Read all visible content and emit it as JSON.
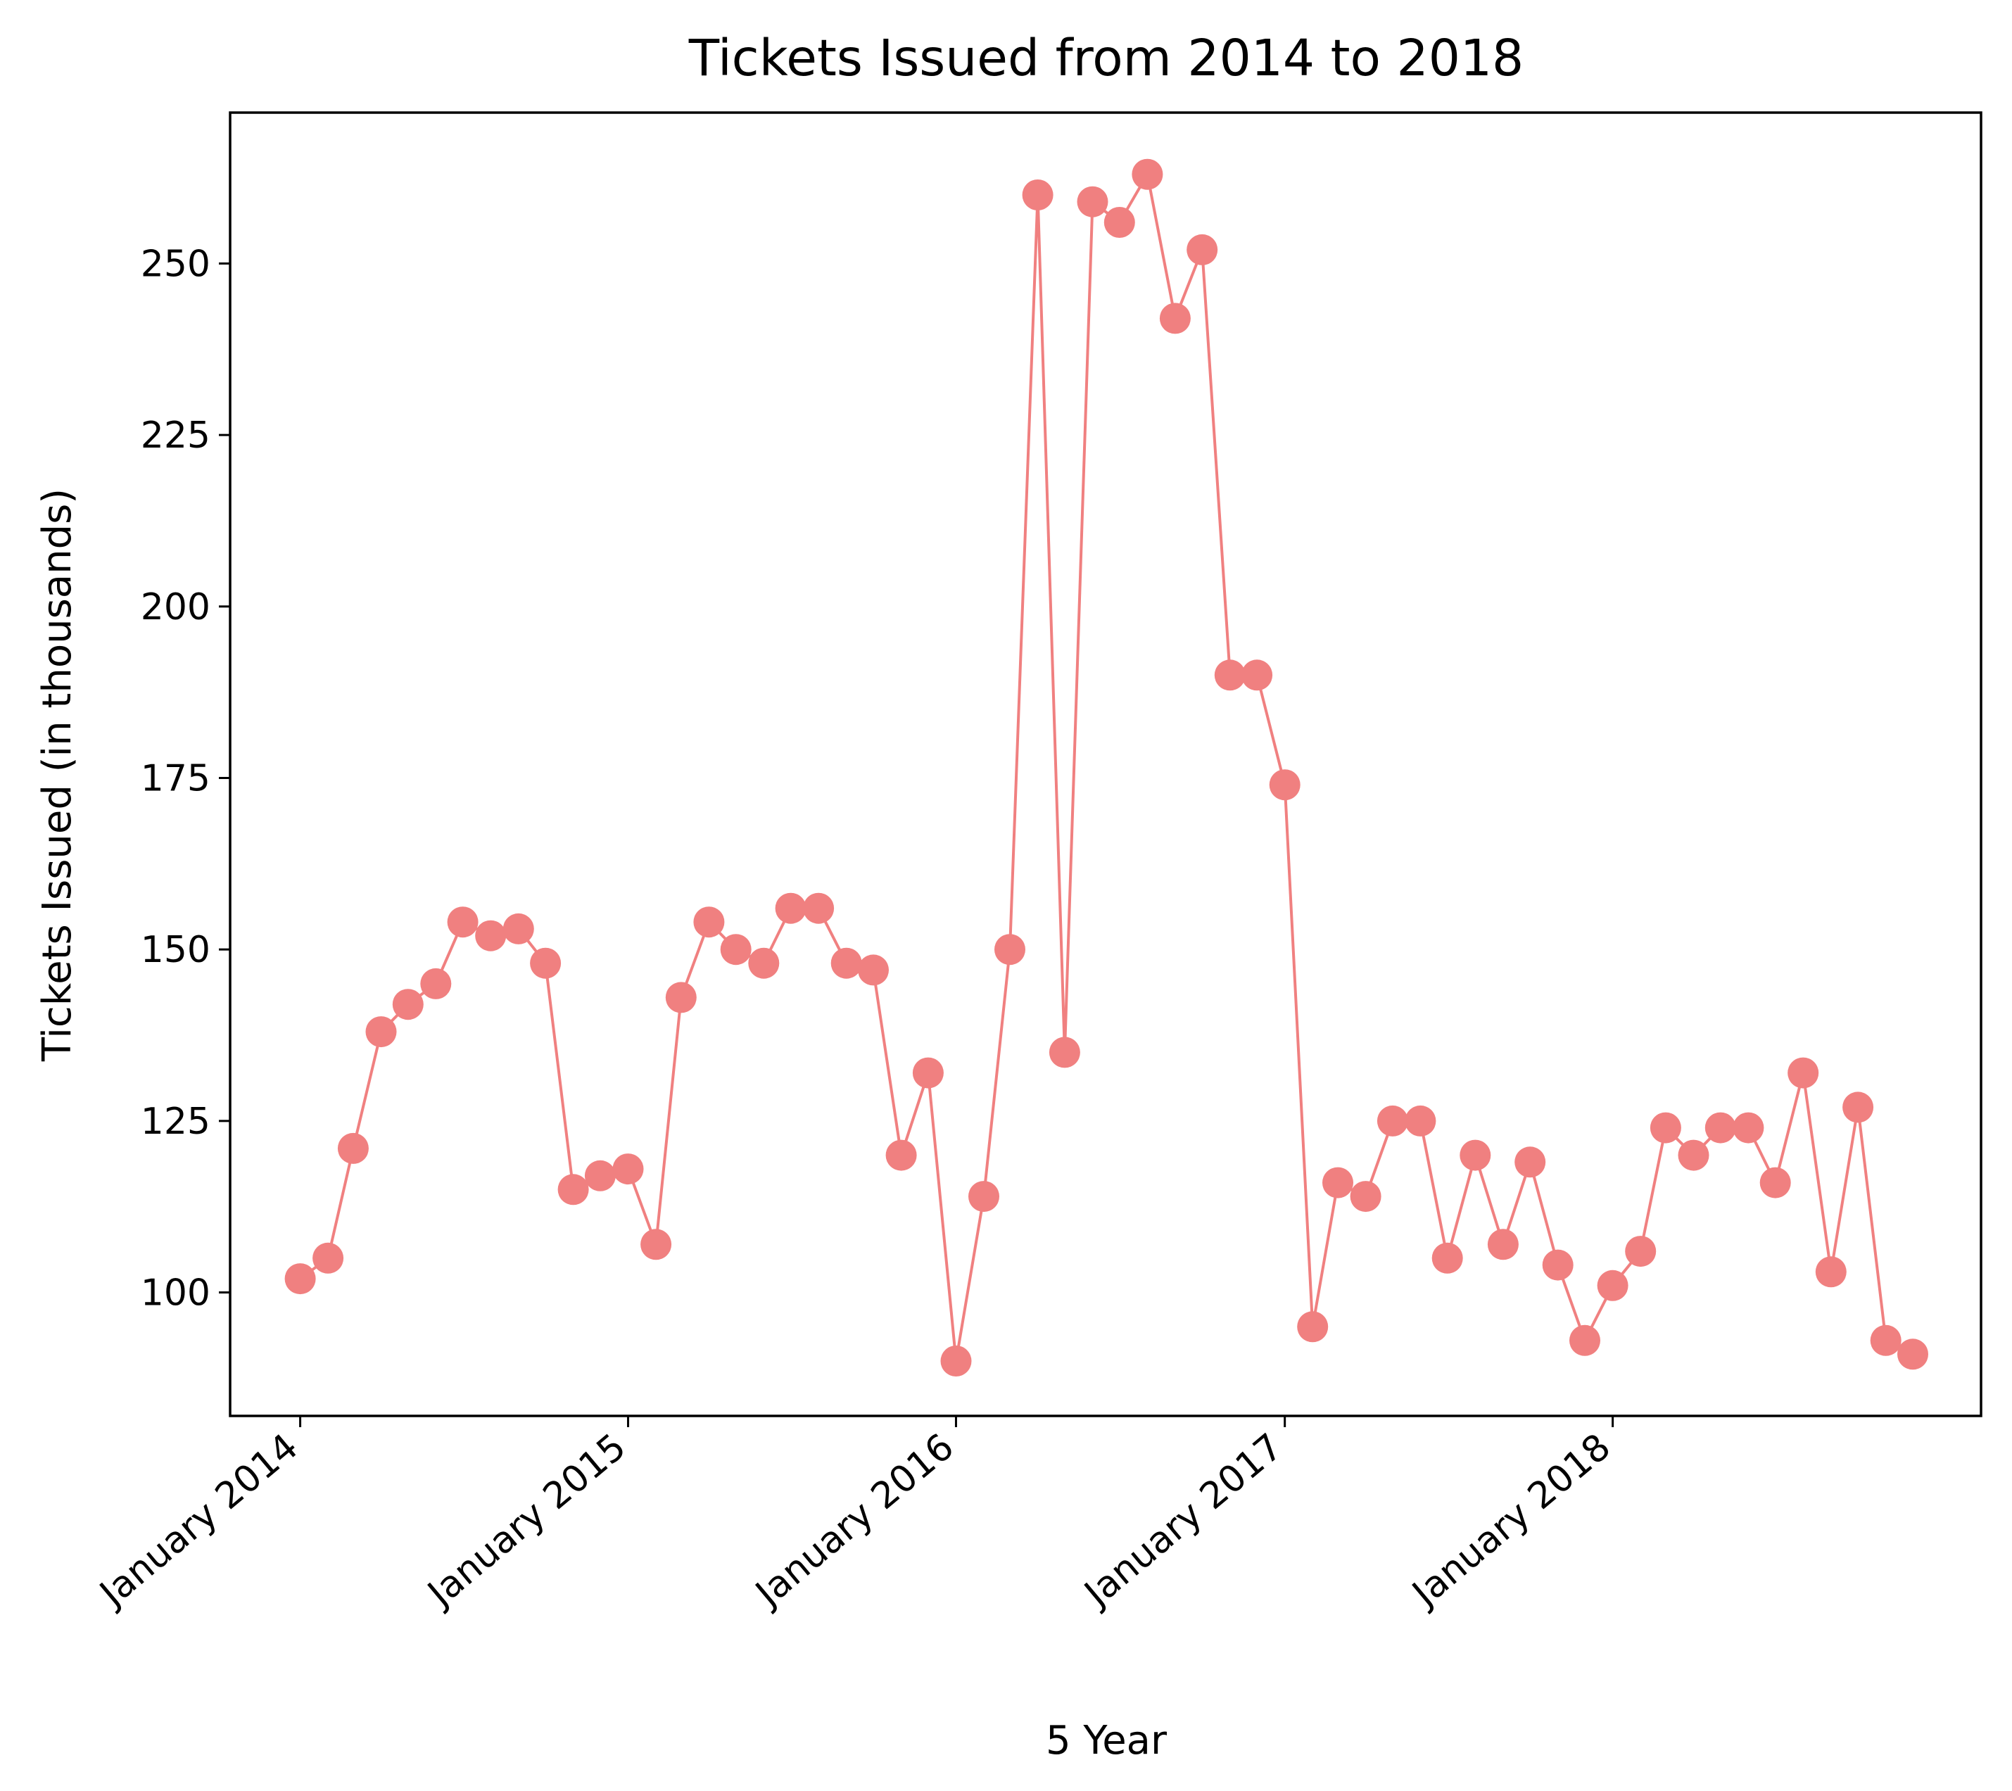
{
  "chart_data": {
    "type": "line",
    "title": "Tickets Issued from 2014 to 2018",
    "xlabel": "5 Year",
    "ylabel": "Tickets Issued (in thousands)",
    "x_tick_labels": [
      "January 2014",
      "January 2015",
      "January 2016",
      "January 2017",
      "January 2018"
    ],
    "y_ticks": [
      100,
      125,
      150,
      175,
      200,
      225,
      250
    ],
    "ylim": [
      82,
      272
    ],
    "xlim": [
      "2013-10-15",
      "2019-02-15"
    ],
    "grid": false,
    "legend": "none",
    "series": [
      {
        "color": "#f08080",
        "marker": "circle",
        "x": [
          "2014-01-01",
          "2014-02-01",
          "2014-03-01",
          "2014-04-01",
          "2014-05-01",
          "2014-06-01",
          "2014-07-01",
          "2014-08-01",
          "2014-09-01",
          "2014-10-01",
          "2014-11-01",
          "2014-12-01",
          "2015-01-01",
          "2015-02-01",
          "2015-03-01",
          "2015-04-01",
          "2015-05-01",
          "2015-06-01",
          "2015-07-01",
          "2015-08-01",
          "2015-09-01",
          "2015-10-01",
          "2015-11-01",
          "2015-12-01",
          "2016-01-01",
          "2016-02-01",
          "2016-03-01",
          "2016-04-01",
          "2016-05-01",
          "2016-06-01",
          "2016-07-01",
          "2016-08-01",
          "2016-09-01",
          "2016-10-01",
          "2016-11-01",
          "2016-12-01",
          "2017-01-01",
          "2017-02-01",
          "2017-03-01",
          "2017-04-01",
          "2017-05-01",
          "2017-06-01",
          "2017-07-01",
          "2017-08-01",
          "2017-09-01",
          "2017-10-01",
          "2017-11-01",
          "2017-12-01",
          "2018-01-01",
          "2018-02-01",
          "2018-03-01",
          "2018-04-01",
          "2018-05-01",
          "2018-06-01",
          "2018-07-01",
          "2018-08-01",
          "2018-09-01",
          "2018-10-01",
          "2018-11-01",
          "2018-12-01"
        ],
        "values": [
          102,
          105,
          121,
          138,
          142,
          145,
          154,
          152,
          153,
          148,
          115,
          117,
          118,
          107,
          143,
          154,
          150,
          148,
          156,
          156,
          148,
          147,
          120,
          132,
          90,
          114,
          150,
          260,
          135,
          259,
          256,
          263,
          242,
          252,
          190,
          190,
          174,
          95,
          116,
          114,
          125,
          125,
          105,
          120,
          107,
          119,
          104,
          93,
          101,
          106,
          124,
          120,
          124,
          124,
          116,
          132,
          103,
          127,
          93,
          91
        ]
      }
    ]
  }
}
